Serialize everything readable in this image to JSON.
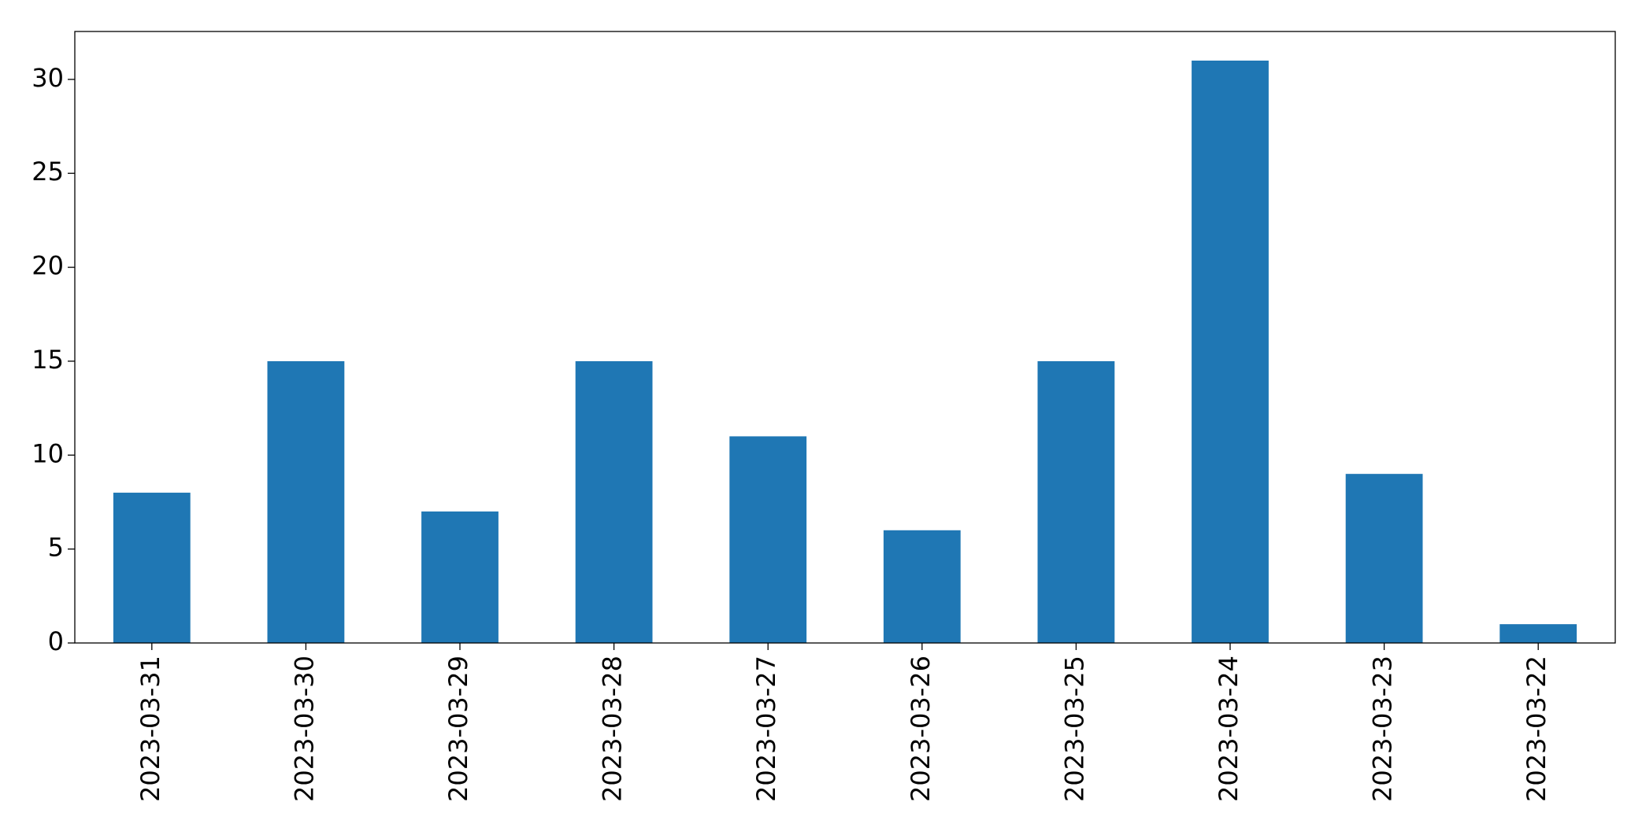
{
  "chart_data": {
    "type": "bar",
    "categories": [
      "2023-03-31",
      "2023-03-30",
      "2023-03-29",
      "2023-03-28",
      "2023-03-27",
      "2023-03-26",
      "2023-03-25",
      "2023-03-24",
      "2023-03-23",
      "2023-03-22"
    ],
    "values": [
      8,
      15,
      7,
      15,
      11,
      6,
      15,
      31,
      9,
      1
    ],
    "color": "#1f77b4",
    "ylim": [
      0,
      32.55
    ],
    "yticks": [
      0,
      5,
      10,
      15,
      20,
      25,
      30
    ],
    "grid": false
  }
}
